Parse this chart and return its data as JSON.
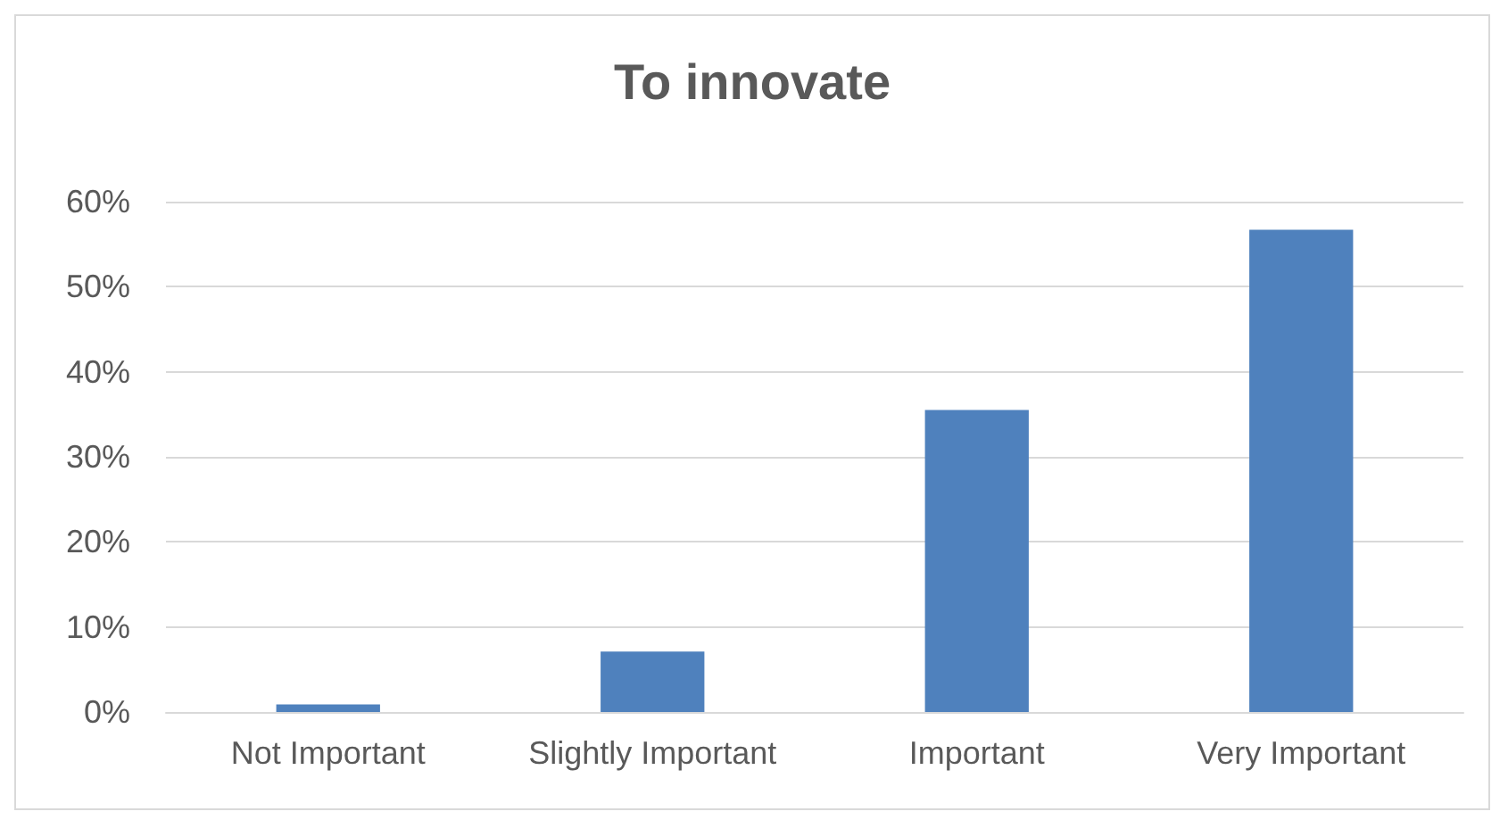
{
  "chart_data": {
    "type": "bar",
    "title": "To innovate",
    "categories": [
      "Not Important",
      "Slightly Important",
      "Important",
      "Very Important"
    ],
    "values": [
      0.9,
      7.1,
      35.5,
      56.7
    ],
    "color": "#4f81bd",
    "ylim": [
      0,
      60
    ],
    "yticks": [
      {
        "value": 0,
        "label": "0%"
      },
      {
        "value": 10,
        "label": "10%"
      },
      {
        "value": 20,
        "label": "20%"
      },
      {
        "value": 30,
        "label": "30%"
      },
      {
        "value": 40,
        "label": "40%"
      },
      {
        "value": 50,
        "label": "50%"
      },
      {
        "value": 60,
        "label": "60%"
      }
    ],
    "grid": true
  }
}
